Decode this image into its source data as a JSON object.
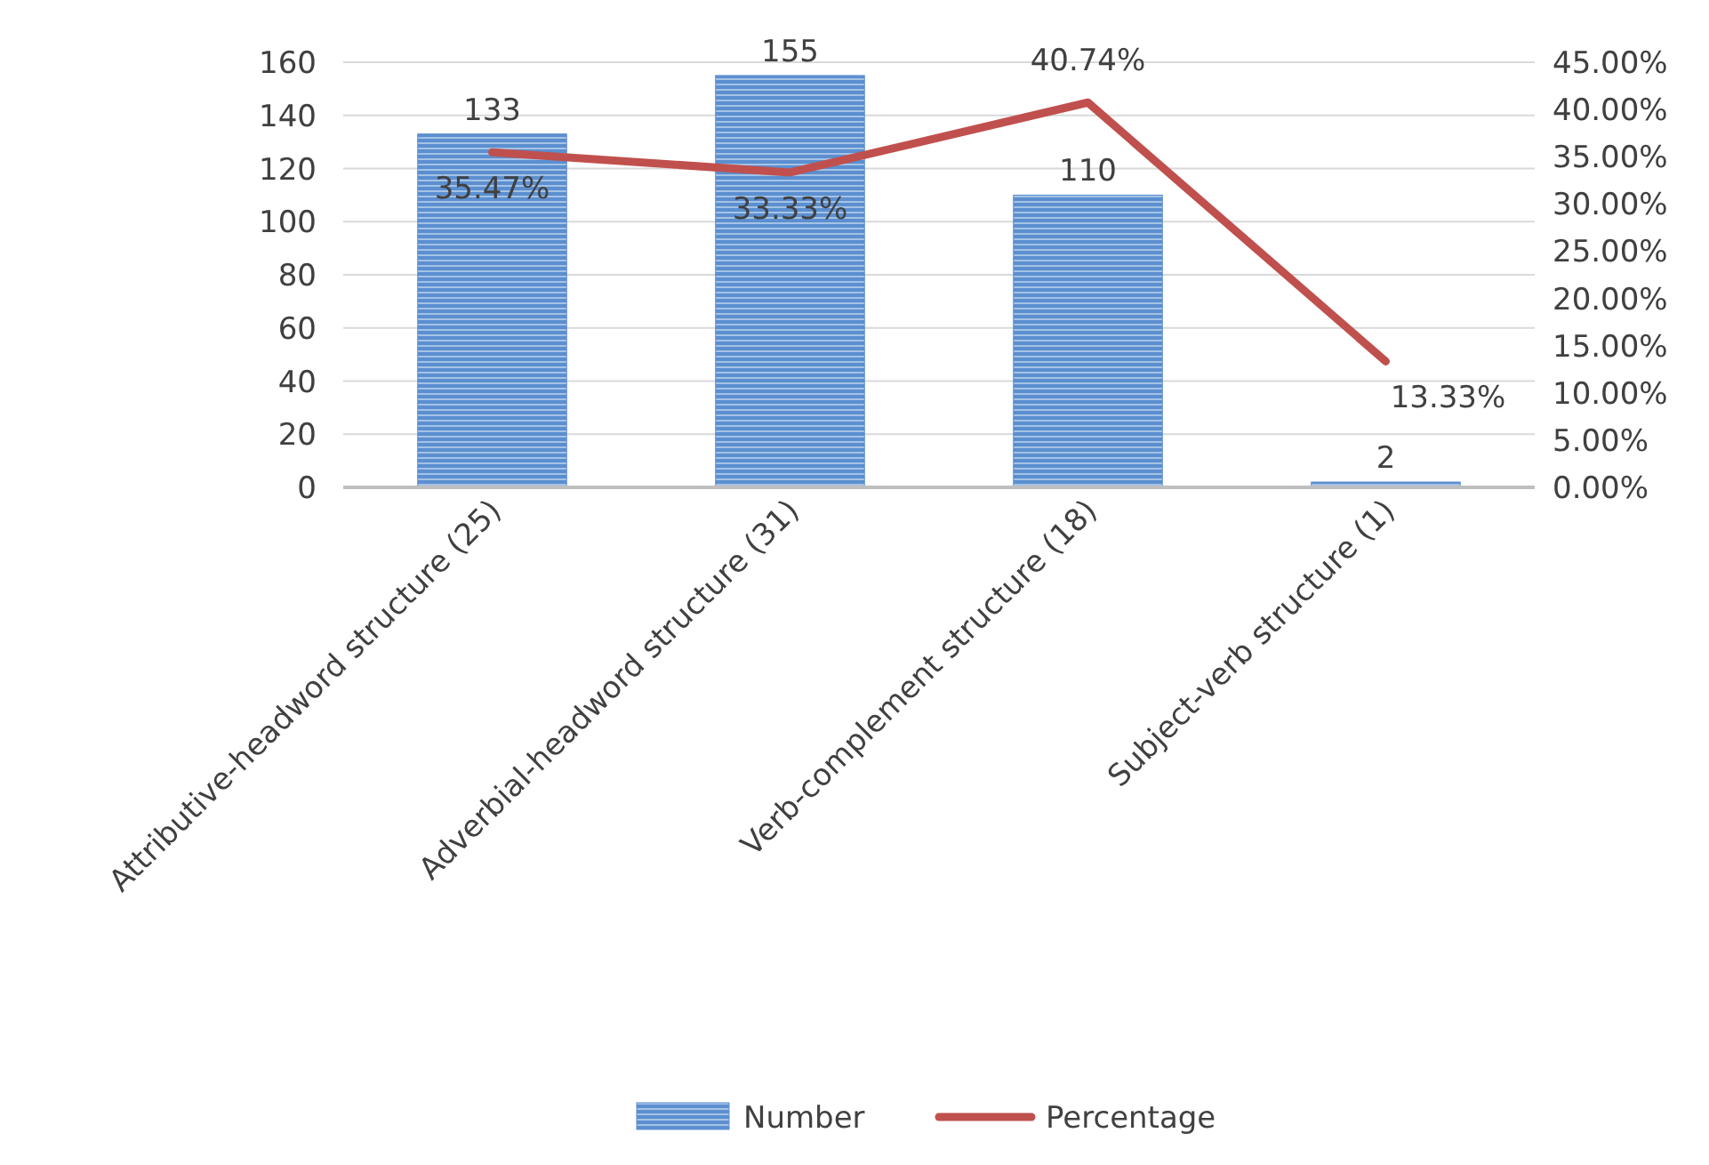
{
  "chart_data": {
    "type": "bar",
    "categories": [
      "Attributive-headword structure (25)",
      "Adverbial-headword structure (31)",
      "Verb-complement structure (18)",
      "Subject-verb structure (1)"
    ],
    "series": [
      {
        "name": "Number",
        "color": "#5b8fd0",
        "values": [
          133,
          155,
          110,
          2
        ],
        "value_labels": [
          "133",
          "155",
          "110",
          "2"
        ]
      },
      {
        "name": "Percentage",
        "type": "line",
        "axis": "y2",
        "color": "#c0504d",
        "values": [
          35.47,
          33.33,
          40.74,
          13.33
        ],
        "value_labels": [
          "35.47%",
          "33.33%",
          "40.74%",
          "13.33%"
        ]
      }
    ],
    "ylim": [
      0,
      160
    ],
    "yticks": [
      0,
      20,
      40,
      60,
      80,
      100,
      120,
      140,
      160
    ],
    "y2lim": [
      0,
      45
    ],
    "y2ticks": [
      {
        "value": 0,
        "label": "0.00%"
      },
      {
        "value": 5,
        "label": "5.00%"
      },
      {
        "value": 10,
        "label": "10.00%"
      },
      {
        "value": 15,
        "label": "15.00%"
      },
      {
        "value": 20,
        "label": "20.00%"
      },
      {
        "value": 25,
        "label": "25.00%"
      },
      {
        "value": 30,
        "label": "30.00%"
      },
      {
        "value": 35,
        "label": "35.00%"
      },
      {
        "value": 40,
        "label": "40.00%"
      },
      {
        "value": 45,
        "label": "45.00%"
      }
    ],
    "grid": "y",
    "legend": "bottom",
    "marker": "none",
    "line_style": "solid"
  }
}
